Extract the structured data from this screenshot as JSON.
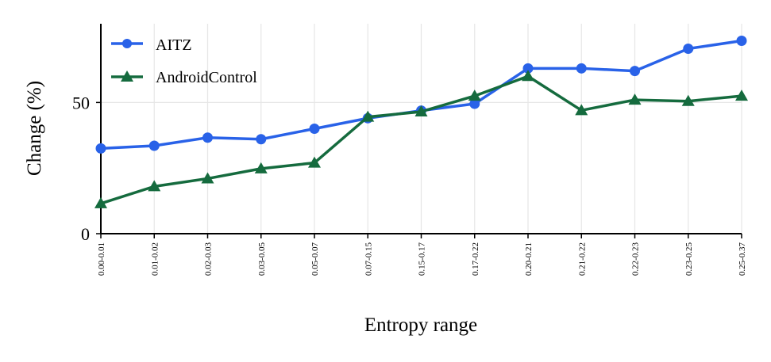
{
  "chart_data": {
    "type": "line",
    "title": "",
    "xlabel": "Entropy range",
    "ylabel": "Change (%)",
    "categories": [
      "0.00-0.01",
      "0.01-0.02",
      "0.02-0.03",
      "0.03-0.05",
      "0.05-0.07",
      "0.07-0.15",
      "0.15-0.17",
      "0.17-0.22",
      "0.20-0.21",
      "0.21-0.22",
      "0.22-0.23",
      "0.23-0.25",
      "0.25-0.37"
    ],
    "ylim": [
      0,
      80
    ],
    "yticks": [
      "0",
      "50"
    ],
    "yticks_values": [
      0,
      50
    ],
    "grid": "vertical and horizontal, light",
    "legend_position": "top-left",
    "series": [
      {
        "name": "AITZ",
        "color": "#2962e8",
        "marker": "circle",
        "values": [
          32.5,
          33.5,
          36.6,
          36.0,
          40.0,
          44.0,
          46.9,
          49.5,
          63.0,
          63.0,
          62.0,
          70.5,
          73.5
        ]
      },
      {
        "name": "AndroidControl",
        "color": "#156b3e",
        "marker": "triangle",
        "values": [
          11.5,
          18.0,
          21.0,
          24.8,
          27.0,
          44.5,
          46.5,
          52.5,
          60.0,
          47.0,
          51.0,
          50.5,
          52.5
        ]
      }
    ]
  }
}
